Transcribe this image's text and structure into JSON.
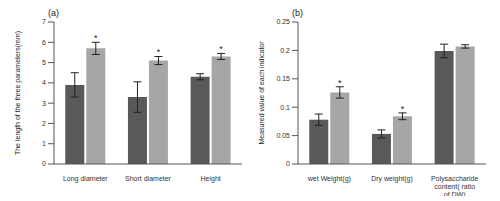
{
  "chart_data": [
    {
      "type": "bar",
      "title": "(a)",
      "y_label": "The length of the three parameters(mm)",
      "categories": [
        "Long diameter",
        "Short diameter",
        "Height"
      ],
      "ylim": [
        0,
        7
      ],
      "yticks": [
        0,
        1,
        2,
        3,
        4,
        5,
        6,
        7
      ],
      "series": [
        {
          "color": "#595959",
          "values": [
            3.9,
            3.3,
            4.3
          ],
          "errors": [
            0.6,
            0.75,
            0.15
          ]
        },
        {
          "color": "#a6a6a6",
          "values": [
            5.7,
            5.1,
            5.3
          ],
          "errors": [
            0.3,
            0.2,
            0.15
          ],
          "marks": [
            "*",
            "*",
            "*"
          ]
        }
      ]
    },
    {
      "type": "bar",
      "title": "(b)",
      "y_label": "Measured value of each indicator",
      "categories": [
        "wet Weight(g)",
        "Dry weight(g)",
        "Polysaccharide content( ratio of DW)"
      ],
      "ylim": [
        0,
        0.25
      ],
      "yticks": [
        0,
        0.05,
        0.1,
        0.15,
        0.2,
        0.25
      ],
      "series": [
        {
          "color": "#595959",
          "values": [
            0.078,
            0.053,
            0.199
          ],
          "errors": [
            0.01,
            0.007,
            0.012
          ]
        },
        {
          "color": "#a6a6a6",
          "values": [
            0.126,
            0.084,
            0.207
          ],
          "errors": [
            0.01,
            0.006,
            0.003
          ],
          "marks": [
            "*",
            "*",
            null
          ]
        }
      ]
    }
  ]
}
